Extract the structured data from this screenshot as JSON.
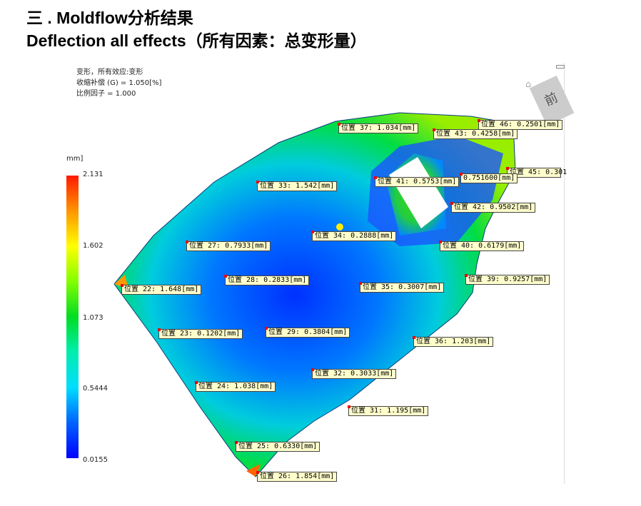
{
  "title": {
    "line1": "三 . Moldflow分析结果",
    "line2": "Deflection all effects（所有因素：总变形量）"
  },
  "plot_info": {
    "line1": "变形，所有效应:变形",
    "line2": "收缩补偿 (G) = 1.050[%]",
    "line3": "比例因子 = 1.000"
  },
  "legend": {
    "unit": "mm]",
    "ticks": [
      "2.131",
      "1.602",
      "1.073",
      "0.5444",
      "0.0155"
    ],
    "colors": [
      "#ff0000",
      "#ffff00",
      "#00dd22",
      "#00ddff",
      "#0000ff"
    ]
  },
  "viewcube": {
    "face": "前",
    "icons": [
      "home-icon",
      "minimize-icon"
    ]
  },
  "probes": [
    {
      "text": "位置 37: 1.034[mm]"
    },
    {
      "text": "位置 43: 0.4258[mm]"
    },
    {
      "text": "位置 46: 0.2501[mm]"
    },
    {
      "text": "位置 41: 0.5753[mm]"
    },
    {
      "text": "位置 45: 0.301"
    },
    {
      "text": "0.751600[mm]"
    },
    {
      "text": "位置 42: 0.9502[mm]"
    },
    {
      "text": "位置 33: 1.542[mm]"
    },
    {
      "text": "位置 34: 0.2888[mm]"
    },
    {
      "text": "位置 40: 0.6179[mm]"
    },
    {
      "text": "位置 27: 0.7933[mm]"
    },
    {
      "text": "位置 28: 0.2833[mm]"
    },
    {
      "text": "位置 22: 1.648[mm]"
    },
    {
      "text": "位置 35: 0.3007[mm]"
    },
    {
      "text": "位置 39: 0.9257[mm]"
    },
    {
      "text": "位置 23: 0.1202[mm]"
    },
    {
      "text": "位置 29: 0.3804[mm]"
    },
    {
      "text": "位置 36: 1.203[mm]"
    },
    {
      "text": "位置 32: 0.3033[mm]"
    },
    {
      "text": "位置 24: 1.038[mm]"
    },
    {
      "text": "位置 31: 1.195[mm]"
    },
    {
      "text": "位置 25: 0.6330[mm]"
    },
    {
      "text": "位置 26: 1.854[mm]"
    }
  ]
}
